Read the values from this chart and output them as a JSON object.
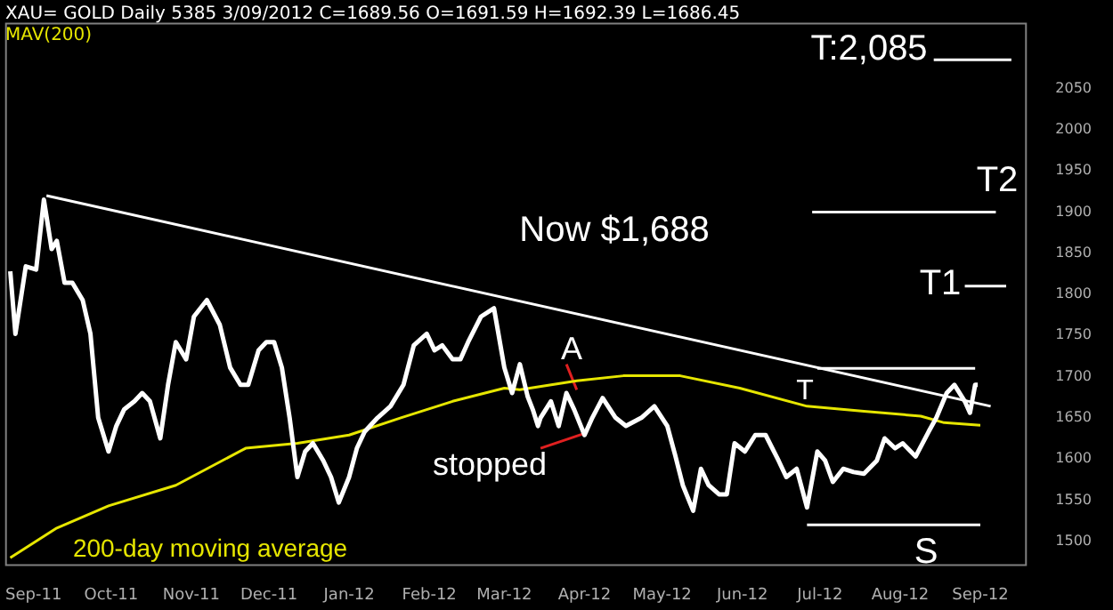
{
  "chart_data": {
    "type": "line",
    "title": "XAU= GOLD Daily 5385 3/09/2012 C=1689.56 O=1691.59 H=1692.39 L=1686.45",
    "legend": "top left",
    "xlim": [
      "2011-08-21",
      "2012-09-19"
    ],
    "xticks": [
      {
        "value": "2011-09-01",
        "label": "Sep-11"
      },
      {
        "value": "2011-10-01",
        "label": "Oct-11"
      },
      {
        "value": "2011-11-01",
        "label": "Nov-11"
      },
      {
        "value": "2011-12-01",
        "label": "Dec-11"
      },
      {
        "value": "2012-01-01",
        "label": "Jan-12"
      },
      {
        "value": "2012-02-01",
        "label": "Feb-12"
      },
      {
        "value": "2012-03-01",
        "label": "Mar-12"
      },
      {
        "value": "2012-04-01",
        "label": "Apr-12"
      },
      {
        "value": "2012-05-01",
        "label": "May-12"
      },
      {
        "value": "2012-06-01",
        "label": "Jun-12"
      },
      {
        "value": "2012-07-01",
        "label": "Jul-12"
      },
      {
        "value": "2012-08-01",
        "label": "Aug-12"
      },
      {
        "value": "2012-09-01",
        "label": "Sep-12"
      }
    ],
    "ylim": [
      1470,
      2130
    ],
    "yticks": [
      1500,
      1550,
      1600,
      1650,
      1700,
      1750,
      1800,
      1850,
      1900,
      1950,
      2000,
      2050
    ],
    "series": [
      {
        "color": "#ffffff",
        "x": [
          "2011-08-23",
          "2011-08-25",
          "2011-08-29",
          "2011-09-02",
          "2011-09-05",
          "2011-09-08",
          "2011-09-10",
          "2011-09-13",
          "2011-09-16",
          "2011-09-20",
          "2011-09-23",
          "2011-09-26",
          "2011-09-30",
          "2011-10-03",
          "2011-10-06",
          "2011-10-10",
          "2011-10-13",
          "2011-10-16",
          "2011-10-20",
          "2011-10-23",
          "2011-10-26",
          "2011-10-30",
          "2011-11-02",
          "2011-11-07",
          "2011-11-12",
          "2011-11-16",
          "2011-11-20",
          "2011-11-23",
          "2011-11-27",
          "2011-11-30",
          "2011-12-03",
          "2011-12-06",
          "2011-12-09",
          "2011-12-12",
          "2011-12-15",
          "2011-12-18",
          "2011-12-22",
          "2011-12-25",
          "2011-12-28",
          "2012-01-01",
          "2012-01-04",
          "2012-01-07",
          "2012-01-12",
          "2012-01-17",
          "2012-01-22",
          "2012-01-26",
          "2012-01-31",
          "2012-02-03",
          "2012-02-06",
          "2012-02-10",
          "2012-02-13",
          "2012-02-16",
          "2012-02-21",
          "2012-02-26",
          "2012-03-01",
          "2012-03-04",
          "2012-03-07",
          "2012-03-10",
          "2012-03-12",
          "2012-03-14",
          "2012-03-15",
          "2012-03-19",
          "2012-03-22",
          "2012-03-25",
          "2012-03-28",
          "2012-04-01",
          "2012-04-04",
          "2012-04-08",
          "2012-04-13",
          "2012-04-17",
          "2012-04-23",
          "2012-04-28",
          "2012-05-03",
          "2012-05-06",
          "2012-05-09",
          "2012-05-13",
          "2012-05-16",
          "2012-05-19",
          "2012-05-23",
          "2012-05-26",
          "2012-05-29",
          "2012-06-02",
          "2012-06-06",
          "2012-06-10",
          "2012-06-15",
          "2012-06-18",
          "2012-06-22",
          "2012-06-26",
          "2012-06-30",
          "2012-07-03",
          "2012-07-06",
          "2012-07-10",
          "2012-07-14",
          "2012-07-18",
          "2012-07-23",
          "2012-07-26",
          "2012-07-30",
          "2012-08-02",
          "2012-08-07",
          "2012-08-12",
          "2012-08-15",
          "2012-08-19",
          "2012-08-22",
          "2012-08-26",
          "2012-08-28",
          "2012-08-30",
          "2012-08-31"
        ],
        "values": [
          1828,
          1752,
          1834,
          1830,
          1915,
          1855,
          1865,
          1814,
          1814,
          1793,
          1752,
          1650,
          1609,
          1640,
          1660,
          1670,
          1680,
          1670,
          1625,
          1690,
          1742,
          1721,
          1773,
          1793,
          1763,
          1711,
          1690,
          1690,
          1732,
          1742,
          1742,
          1711,
          1650,
          1578,
          1609,
          1619,
          1598,
          1578,
          1547,
          1578,
          1613,
          1633,
          1650,
          1664,
          1690,
          1738,
          1752,
          1732,
          1738,
          1721,
          1721,
          1742,
          1773,
          1783,
          1711,
          1680,
          1715,
          1676,
          1660,
          1640,
          1650,
          1670,
          1640,
          1680,
          1660,
          1629,
          1650,
          1674,
          1650,
          1640,
          1650,
          1664,
          1640,
          1605,
          1568,
          1537,
          1588,
          1568,
          1557,
          1557,
          1619,
          1609,
          1629,
          1629,
          1598,
          1578,
          1588,
          1541,
          1609,
          1598,
          1572,
          1588,
          1584,
          1582,
          1598,
          1625,
          1613,
          1619,
          1603,
          1633,
          1650,
          1680,
          1690,
          1670,
          1656,
          1690,
          1690
        ]
      },
      {
        "name": "MAV(200)",
        "color": "#e6e600",
        "x": [
          "2011-08-23",
          "2011-09-10",
          "2011-09-30",
          "2011-10-26",
          "2011-11-22",
          "2011-12-12",
          "2012-01-01",
          "2012-01-21",
          "2012-02-10",
          "2012-03-01",
          "2012-03-07",
          "2012-03-29",
          "2012-04-16",
          "2012-05-08",
          "2012-05-31",
          "2012-06-26",
          "2012-07-18",
          "2012-08-09",
          "2012-08-18",
          "2012-09-01"
        ],
        "values": [
          1480,
          1516,
          1543,
          1568,
          1613,
          1619,
          1629,
          1650,
          1670,
          1686,
          1684,
          1695,
          1701,
          1701,
          1686,
          1664,
          1658,
          1652,
          1644,
          1641
        ]
      },
      {
        "color": "#ffffff",
        "x": [
          "2011-09-06",
          "2012-09-05"
        ],
        "values": [
          1920,
          1664
        ]
      },
      {
        "color": "#ffffff",
        "x": [
          "2012-08-14",
          "2012-09-13"
        ],
        "values": [
          2085,
          2085
        ]
      },
      {
        "color": "#ffffff",
        "x": [
          "2012-06-28",
          "2012-09-07"
        ],
        "values": [
          1900,
          1900
        ]
      },
      {
        "color": "#ffffff",
        "x": [
          "2012-08-26",
          "2012-09-11"
        ],
        "values": [
          1810,
          1810
        ]
      },
      {
        "color": "#ffffff",
        "x": [
          "2012-06-30",
          "2012-08-30"
        ],
        "values": [
          1710,
          1710
        ]
      },
      {
        "color": "#ffffff",
        "x": [
          "2012-06-26",
          "2012-09-01"
        ],
        "values": [
          1520,
          1520
        ]
      },
      {
        "color": "#e02020",
        "x": [
          "2012-03-25",
          "2012-03-29"
        ],
        "values": [
          1715,
          1684
        ]
      },
      {
        "color": "#e02020",
        "x": [
          "2012-03-15",
          "2012-04-01"
        ],
        "values": [
          1613,
          1631
        ]
      }
    ],
    "annotations": [
      "Now $1,688",
      "A",
      "stopped",
      "200-day moving average",
      "T:2,085",
      "T2",
      "T1",
      "T",
      "S"
    ]
  }
}
